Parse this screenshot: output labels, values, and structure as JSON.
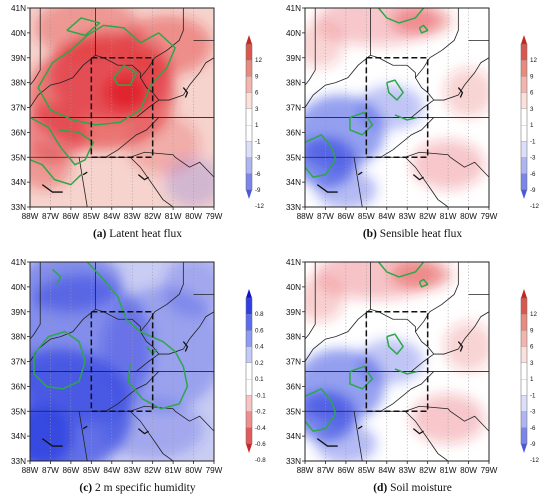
{
  "panels": [
    {
      "letter": "(a)",
      "title": "Latent heat flux",
      "field": "latent",
      "colorbar": {
        "ticks": [
          "12",
          "9",
          "6",
          "3",
          "1",
          "-1",
          "-3",
          "-6",
          "-9",
          "-12"
        ]
      }
    },
    {
      "letter": "(b)",
      "title": "Sensible heat flux",
      "field": "sensible",
      "colorbar": {
        "ticks": [
          "12",
          "9",
          "6",
          "3",
          "1",
          "-1",
          "-3",
          "-6",
          "-9",
          "-12"
        ]
      }
    },
    {
      "letter": "(c)",
      "title": "2 m specific humidity",
      "field": "humidity",
      "colorbar": {
        "ticks": [
          "0.8",
          "0.6",
          "0.4",
          "0.2",
          "0.1",
          "-0.1",
          "-0.2",
          "-0.4",
          "-0.6",
          "-0.8"
        ]
      }
    },
    {
      "letter": "(d)",
      "title": "Soil moisture",
      "field": "soil",
      "colorbar": {
        "ticks": [
          "12",
          "9",
          "6",
          "3",
          "1",
          "-1",
          "-3",
          "-6",
          "-9",
          "-12"
        ]
      }
    }
  ],
  "map": {
    "lon_labels": [
      "88W",
      "87W",
      "86W",
      "85W",
      "84W",
      "83W",
      "82W",
      "81W",
      "80W",
      "79W"
    ],
    "lat_labels": [
      "41N",
      "40N",
      "39N",
      "38N",
      "37N",
      "36N",
      "35N",
      "34N",
      "33N"
    ],
    "lon_range": [
      -88,
      -79
    ],
    "lat_range": [
      33,
      41
    ],
    "study_box": {
      "lon": [
        -85,
        -82
      ],
      "lat": [
        35,
        39
      ]
    }
  },
  "colors": {
    "positive": "#e0242b",
    "negative": "#2a3fe0",
    "contour": "#2ea64a",
    "box": "#111111"
  }
}
